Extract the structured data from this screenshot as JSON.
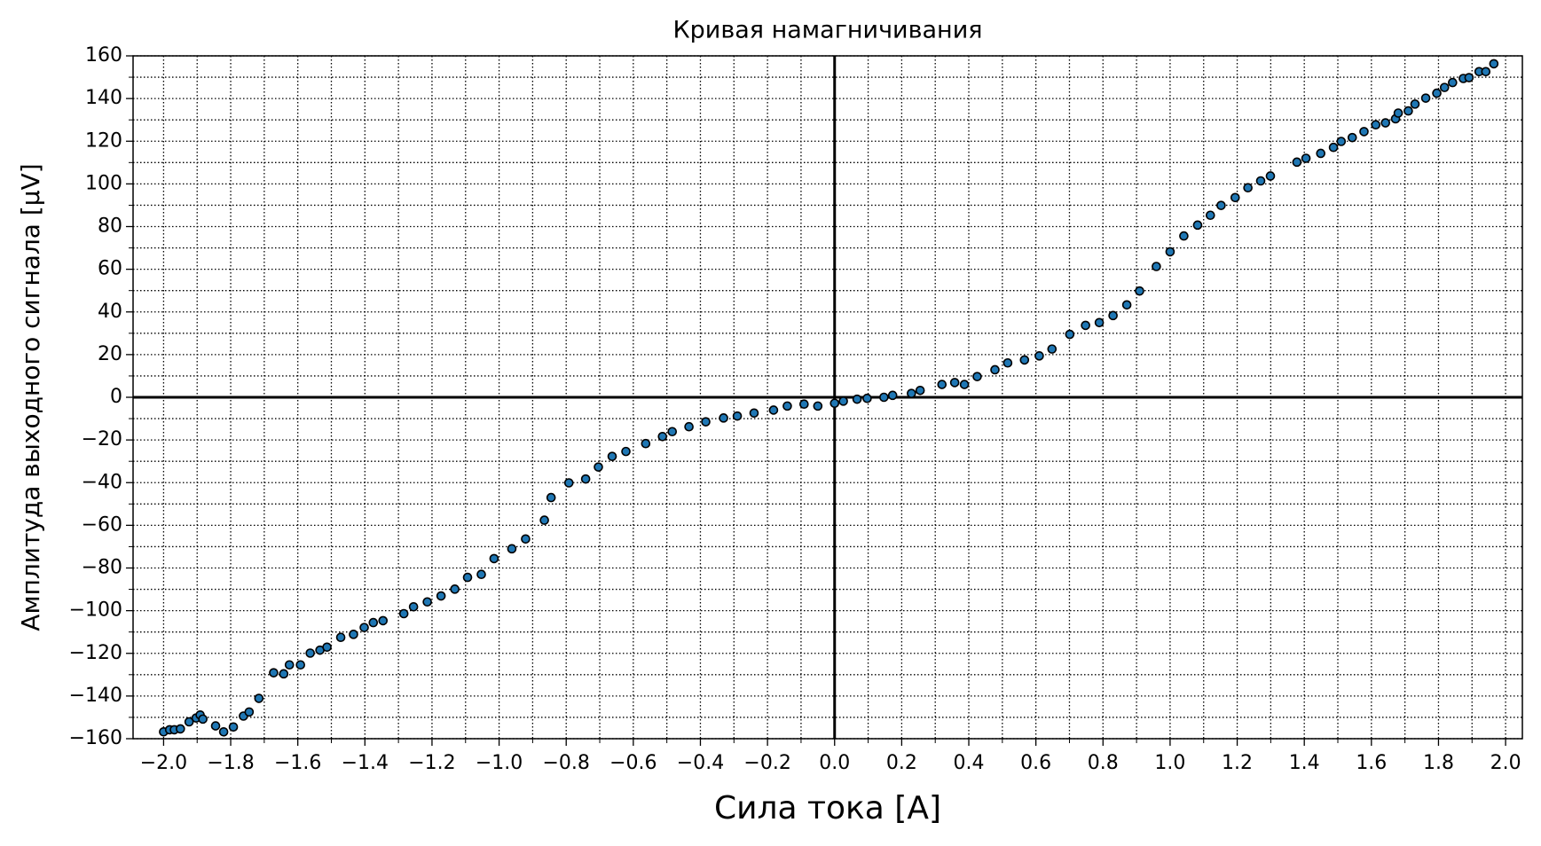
{
  "chart_data": {
    "type": "scatter",
    "title": "Кривая намагничивания",
    "x_label": "Сила тока [A]",
    "y_label": "Амплитуда выходного сигнала [μV]",
    "color": "#1f77b4",
    "grid": true,
    "minor_grid": true,
    "zero_lines": true,
    "xlim": [
      -2.091,
      2.05
    ],
    "ylim": [
      -160,
      160
    ],
    "xticks": [
      {
        "value": -2.0,
        "label": "−2.0"
      },
      {
        "value": -1.8,
        "label": "−1.8"
      },
      {
        "value": -1.6,
        "label": "−1.6"
      },
      {
        "value": -1.4,
        "label": "−1.4"
      },
      {
        "value": -1.2,
        "label": "−1.2"
      },
      {
        "value": -1.0,
        "label": "−1.0"
      },
      {
        "value": -0.8,
        "label": "−0.8"
      },
      {
        "value": -0.6,
        "label": "−0.6"
      },
      {
        "value": -0.4,
        "label": "−0.4"
      },
      {
        "value": -0.2,
        "label": "−0.2"
      },
      {
        "value": 0,
        "label": "0.0"
      },
      {
        "value": 0.2,
        "label": "0.2"
      },
      {
        "value": 0.4,
        "label": "0.4"
      },
      {
        "value": 0.6,
        "label": "0.6"
      },
      {
        "value": 0.8,
        "label": "0.8"
      },
      {
        "value": 1.0,
        "label": "1.0"
      },
      {
        "value": 1.2,
        "label": "1.2"
      },
      {
        "value": 1.4,
        "label": "1.4"
      },
      {
        "value": 1.6,
        "label": "1.6"
      },
      {
        "value": 1.8,
        "label": "1.8"
      },
      {
        "value": 2.0,
        "label": "2.0"
      }
    ],
    "yticks": [
      {
        "value": -160,
        "label": "−160"
      },
      {
        "value": -140,
        "label": "−140"
      },
      {
        "value": -120,
        "label": "−120"
      },
      {
        "value": -100,
        "label": "−100"
      },
      {
        "value": -80,
        "label": "−80"
      },
      {
        "value": -60,
        "label": "−60"
      },
      {
        "value": -40,
        "label": "−40"
      },
      {
        "value": -20,
        "label": "−20"
      },
      0,
      20,
      40,
      60,
      80,
      100,
      120,
      140,
      160
    ],
    "x": [
      -2.0,
      -1.982,
      -1.968,
      -1.95,
      -1.924,
      -1.903,
      -1.891,
      -1.883,
      -1.845,
      -1.821,
      -1.792,
      -1.762,
      -1.745,
      -1.716,
      -1.672,
      -1.642,
      -1.625,
      -1.592,
      -1.563,
      -1.534,
      -1.513,
      -1.472,
      -1.434,
      -1.402,
      -1.375,
      -1.346,
      -1.284,
      -1.255,
      -1.214,
      -1.173,
      -1.132,
      -1.094,
      -1.053,
      -1.015,
      -0.962,
      -0.921,
      -0.865,
      -0.845,
      -0.792,
      -0.742,
      -0.704,
      -0.663,
      -0.622,
      -0.563,
      -0.513,
      -0.484,
      -0.434,
      -0.384,
      -0.331,
      -0.29,
      -0.24,
      -0.182,
      -0.141,
      -0.091,
      -0.05,
      0.0,
      0.026,
      0.067,
      0.097,
      0.147,
      0.173,
      0.229,
      0.255,
      0.32,
      0.358,
      0.387,
      0.425,
      0.478,
      0.516,
      0.566,
      0.61,
      0.648,
      0.701,
      0.748,
      0.789,
      0.83,
      0.871,
      0.909,
      0.959,
      1.0,
      1.041,
      1.082,
      1.12,
      1.152,
      1.194,
      1.232,
      1.27,
      1.299,
      1.378,
      1.405,
      1.449,
      1.487,
      1.51,
      1.543,
      1.578,
      1.613,
      1.642,
      1.672,
      1.68,
      1.71,
      1.73,
      1.762,
      1.795,
      1.818,
      1.842,
      1.874,
      1.891,
      1.921,
      1.941,
      1.965
    ],
    "values": [
      -156.8,
      -155.8,
      -155.8,
      -155.4,
      -152.1,
      -150.3,
      -148.9,
      -150.8,
      -154.0,
      -156.8,
      -154.5,
      -149.4,
      -147.5,
      -141.1,
      -129.1,
      -129.6,
      -125.4,
      -125.4,
      -119.9,
      -118.5,
      -117.1,
      -112.5,
      -111.1,
      -107.9,
      -105.6,
      -104.7,
      -101.4,
      -98.2,
      -95.9,
      -93.1,
      -89.9,
      -84.4,
      -83.0,
      -75.6,
      -71.0,
      -66.4,
      -57.6,
      -47.0,
      -40.1,
      -38.3,
      -32.7,
      -27.7,
      -25.4,
      -21.7,
      -18.4,
      -16.1,
      -13.8,
      -11.5,
      -9.7,
      -8.8,
      -7.4,
      -6.0,
      -4.1,
      -3.2,
      -4.1,
      -2.8,
      -1.8,
      -0.9,
      -0.5,
      0.0,
      0.9,
      1.8,
      3.2,
      6.0,
      6.9,
      6.0,
      9.7,
      12.9,
      16.1,
      17.5,
      19.4,
      22.6,
      29.5,
      33.7,
      35.0,
      38.3,
      43.3,
      49.8,
      61.3,
      68.2,
      75.6,
      80.7,
      85.3,
      89.9,
      93.6,
      98.2,
      101.4,
      103.7,
      110.2,
      112.0,
      114.3,
      117.1,
      119.9,
      121.7,
      124.5,
      127.7,
      128.6,
      130.5,
      133.2,
      134.2,
      137.4,
      140.2,
      142.5,
      145.2,
      147.5,
      149.4,
      149.8,
      152.6,
      152.6,
      156.3
    ]
  }
}
